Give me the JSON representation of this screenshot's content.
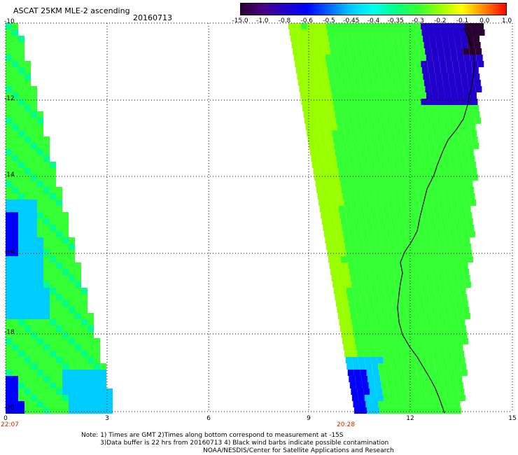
{
  "header": {
    "title": "ASCAT 25KM MLE-2 ascending",
    "date": "20160713"
  },
  "colorbar": {
    "labels": [
      "-15.0",
      "-1.0",
      "-0.8",
      "-0.6",
      "-0.5",
      "-0.45",
      "-0.4",
      "-0.35",
      "-0.3",
      "-0.2",
      "-0.1",
      "0.0",
      "1.0"
    ],
    "colors": [
      "#2a0033",
      "#4b0082",
      "#2200cc",
      "#0000ff",
      "#0066ff",
      "#00ccff",
      "#00ffee",
      "#00ff88",
      "#33ff33",
      "#99ff00",
      "#ffff00",
      "#ff8800",
      "#ff0000"
    ]
  },
  "axes": {
    "y_labels": [
      "-10",
      "-12",
      "-14",
      "-16",
      "-18",
      "-20"
    ],
    "x_labels": [
      "0",
      "3",
      "6",
      "9",
      "12",
      "15"
    ],
    "time_labels": [
      "22:07",
      "20:28"
    ]
  },
  "notes": {
    "line1": "Note: 1) Times are GMT 2)Times along bottom correspond to measurement at -15S",
    "line2": "3)Data buffer is 22 hrs from 20160713 4) Black wind barbs indicate possible contamination",
    "line3": "NOAA/NESDIS/Center for Satellite Applications and Research"
  }
}
